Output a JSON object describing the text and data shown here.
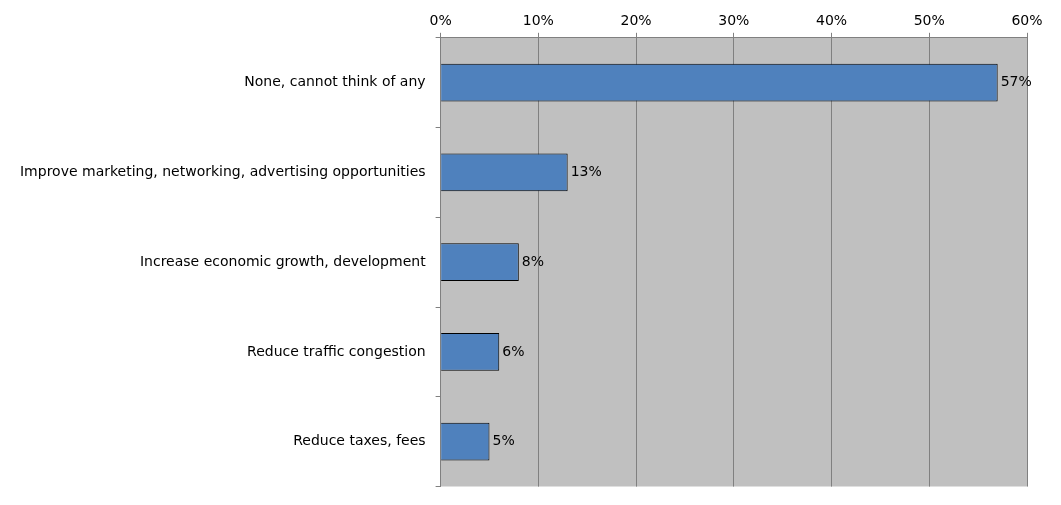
{
  "chart_data": {
    "type": "bar",
    "orientation": "horizontal",
    "categories": [
      "None, cannot think of any",
      "Improve marketing, networking, advertising opportunities",
      "Increase economic growth, development",
      "Reduce traffic congestion",
      "Reduce taxes, fees"
    ],
    "values": [
      57,
      13,
      8,
      6,
      5
    ],
    "value_labels": [
      "57%",
      "13%",
      "8%",
      "6%",
      "5%"
    ],
    "color": "#4f81bd",
    "xlim": [
      0,
      60
    ],
    "xticks": [
      {
        "value": 0,
        "label": "0%"
      },
      {
        "value": 10,
        "label": "10%"
      },
      {
        "value": 20,
        "label": "20%"
      },
      {
        "value": 30,
        "label": "30%"
      },
      {
        "value": 40,
        "label": "40%"
      },
      {
        "value": 50,
        "label": "50%"
      },
      {
        "value": 60,
        "label": "60%"
      }
    ],
    "grid": "x",
    "legend": false
  }
}
